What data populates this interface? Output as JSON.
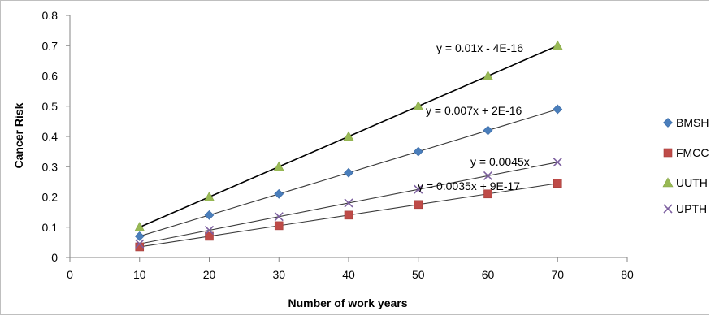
{
  "chart_data": {
    "type": "scatter",
    "xlabel": "Number of work years",
    "ylabel": "Cancer Risk",
    "xlim": [
      0,
      80
    ],
    "ylim": [
      0,
      0.8
    ],
    "xticks": [
      0,
      10,
      20,
      30,
      40,
      50,
      60,
      70,
      80
    ],
    "yticks": [
      0,
      0.1,
      0.2,
      0.3,
      0.4,
      0.5,
      0.6,
      0.7,
      0.8
    ],
    "x": [
      10,
      20,
      30,
      40,
      50,
      60,
      70
    ],
    "grid": false,
    "legend_position": "right",
    "series": [
      {
        "name": "BMSH",
        "marker": "diamond",
        "color": "#4a7ebb",
        "values": [
          0.07,
          0.14,
          0.21,
          0.28,
          0.35,
          0.42,
          0.49
        ],
        "trendline": {
          "equation": "y = 0.007x + 2E-16",
          "slope": 0.007,
          "intercept": 0
        }
      },
      {
        "name": "FMCC",
        "marker": "square",
        "color": "#be4b48",
        "values": [
          0.035,
          0.07,
          0.105,
          0.14,
          0.175,
          0.21,
          0.245
        ],
        "trendline": {
          "equation": "y = 0.0035x + 9E-17",
          "slope": 0.0035,
          "intercept": 0
        }
      },
      {
        "name": "UUTH",
        "marker": "triangle",
        "color": "#98b954",
        "values": [
          0.1,
          0.2,
          0.3,
          0.4,
          0.5,
          0.6,
          0.7
        ],
        "trendline": {
          "equation": "y = 0.01x - 4E-16",
          "slope": 0.01,
          "intercept": 0
        }
      },
      {
        "name": "UPTH",
        "marker": "x",
        "color": "#7d60a0",
        "values": [
          0.045,
          0.09,
          0.135,
          0.18,
          0.225,
          0.27,
          0.315
        ],
        "trendline": {
          "equation": "y = 0.0045x",
          "slope": 0.0045,
          "intercept": 0
        }
      }
    ]
  }
}
